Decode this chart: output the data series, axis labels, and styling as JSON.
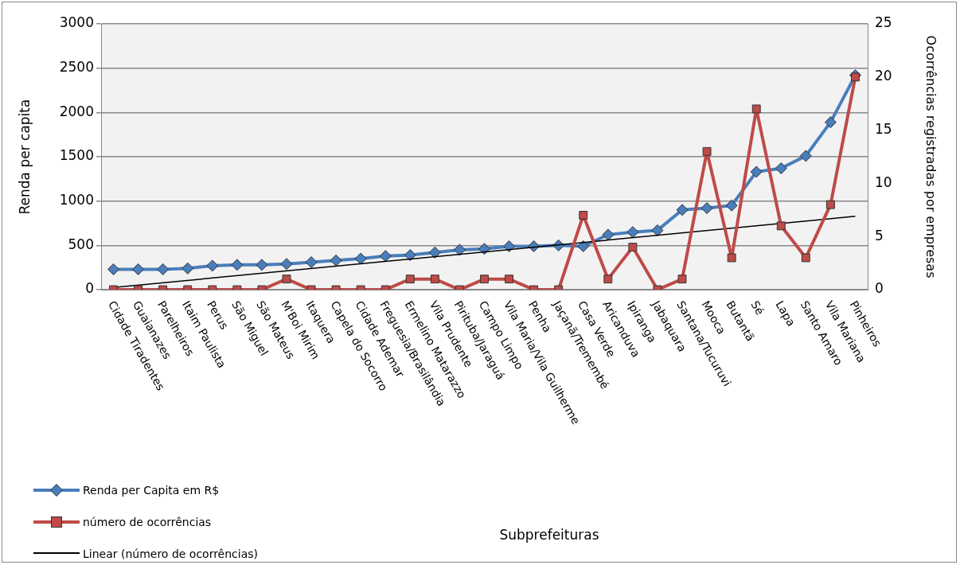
{
  "chart_data": {
    "type": "line",
    "annotations": [
      "Subprefeituras"
    ],
    "ylabel": "Renda per capita",
    "y2label": "Ocorrências registradas por empresas",
    "categories": [
      "Cidade Tiradentes",
      "Guaianazes",
      "Parelheiros",
      "Itaim Paulista",
      "Perus",
      "São Miguel",
      "São Mateus",
      "M'Boi Mirim",
      "Itaquera",
      "Capela do Socorro",
      "Cidade Ademar",
      "Freguesia/Brasilândia",
      "Ermelino Matarazzo",
      "Vila Prudente",
      "Pirituba/Jaraguá",
      "Campo Limpo",
      "Vila Maria/Vila Guilherme",
      "Penha",
      "Jaçanã/Tremembé",
      "Casa Verde",
      "Aricanduva",
      "Ipiranga",
      "Jabaquara",
      "Santana/Tucuruvi",
      "Mooca",
      "Butantã",
      "Sé",
      "Lapa",
      "Santo Amaro",
      "Vila Mariana",
      "Pinheiros"
    ],
    "series": [
      {
        "name": "Renda per Capita em R$",
        "color": "#4a7ebb",
        "marker": "diamond",
        "values": [
          230,
          230,
          230,
          240,
          270,
          280,
          280,
          290,
          310,
          330,
          350,
          380,
          390,
          420,
          450,
          460,
          490,
          490,
          500,
          490,
          620,
          650,
          670,
          900,
          920,
          950,
          1330,
          1370,
          1510,
          1890,
          2420
        ]
      },
      {
        "name": "número de ocorrências",
        "color": "#be4b48",
        "marker": "square",
        "axis": "y2",
        "values": [
          0,
          0,
          0,
          0,
          0,
          0,
          0,
          1,
          0,
          0,
          0,
          0,
          1,
          1,
          0,
          1,
          1,
          0,
          0,
          7,
          1,
          4,
          0,
          1,
          13,
          3,
          17,
          6,
          3,
          8,
          20
        ]
      },
      {
        "name": "Linear (número de ocorrências)",
        "color": "#000000",
        "marker": "none",
        "axis": "y2",
        "x": [
          "Cidade Tiradentes",
          "Pinheiros"
        ],
        "values": [
          0.2,
          6.9
        ]
      }
    ],
    "ylim": [
      0,
      3000
    ],
    "yticks": [
      0,
      500,
      1000,
      1500,
      2000,
      2500,
      3000
    ],
    "y2lim": [
      0,
      25
    ],
    "y2ticks": [
      0,
      5,
      10,
      15,
      20,
      25
    ],
    "grid": "y",
    "legend": "bottom left",
    "line_style": "solid"
  }
}
